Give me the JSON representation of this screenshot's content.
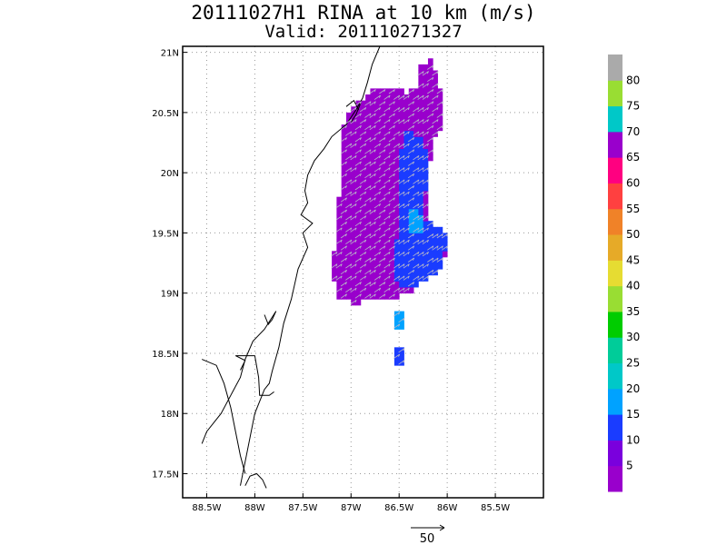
{
  "chart_data": {
    "type": "heatmap",
    "title": "20111027H1 RINA at 10 km (m/s)",
    "subtitle": "Valid: 201110271327",
    "x_ticks": [
      "88.5W",
      "88W",
      "87.5W",
      "87W",
      "86.5W",
      "86W",
      "85.5W"
    ],
    "x_tick_values": [
      -88.5,
      -88.0,
      -87.5,
      -87.0,
      -86.5,
      -86.0,
      -85.5
    ],
    "y_ticks": [
      "21N",
      "20.5N",
      "20N",
      "19.5N",
      "19N",
      "18.5N",
      "18N",
      "17.5N"
    ],
    "y_tick_values": [
      21.0,
      20.5,
      20.0,
      19.5,
      19.0,
      18.5,
      18.0,
      17.5
    ],
    "xlim": [
      -88.75,
      -85.0
    ],
    "ylim": [
      17.3,
      21.05
    ],
    "grid": true,
    "colorbar": {
      "labels": [
        "5",
        "10",
        "15",
        "20",
        "25",
        "30",
        "35",
        "40",
        "45",
        "50",
        "55",
        "60",
        "65",
        "70",
        "75",
        "80"
      ],
      "colors": [
        "#9900cc",
        "#7a00dd",
        "#1a3cff",
        "#00a2ff",
        "#00c8c8",
        "#00cc99",
        "#00cc00",
        "#99dd33",
        "#e6dc32",
        "#e6aa28",
        "#f08228",
        "#ff4040",
        "#ff0080",
        "#9900cc",
        "#00c8c8",
        "#99dd33",
        "#aaaaaa"
      ]
    },
    "wind_field": {
      "dominant_speed": "0-5 m/s",
      "secondary_speed": "10-15 m/s",
      "peak_speed": "15-20 m/s",
      "direction": "northeastward"
    },
    "reference_vector": {
      "label": "50",
      "direction": "east"
    }
  }
}
